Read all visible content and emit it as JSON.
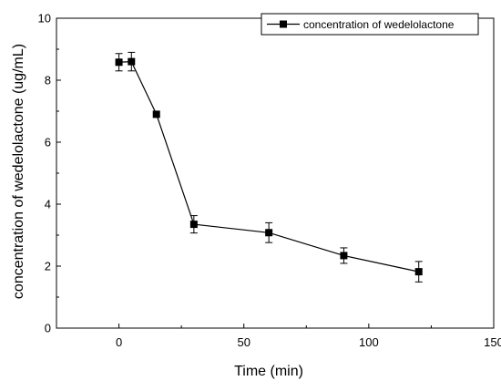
{
  "chart_data": {
    "type": "line",
    "title": "",
    "xlabel": "Time (min)",
    "ylabel": "concentration of wedelolactone (ug/mL)",
    "xlim": [
      -25,
      150
    ],
    "ylim": [
      0,
      10
    ],
    "xticks": [
      0,
      50,
      100,
      150
    ],
    "yticks": [
      0,
      2,
      4,
      6,
      8,
      10
    ],
    "grid": false,
    "legend_position": "top-right",
    "series": [
      {
        "name": "concentration of wedelolactone",
        "marker": "square",
        "color": "#000000",
        "points": [
          {
            "x": 0,
            "y": 8.58,
            "err": 0.28
          },
          {
            "x": 5,
            "y": 8.6,
            "err": 0.3
          },
          {
            "x": 15,
            "y": 6.9,
            "err": 0
          },
          {
            "x": 30,
            "y": 3.35,
            "err": 0.28
          },
          {
            "x": 60,
            "y": 3.08,
            "err": 0.32
          },
          {
            "x": 90,
            "y": 2.34,
            "err": 0.25
          },
          {
            "x": 120,
            "y": 1.82,
            "err": 0.33
          }
        ]
      }
    ]
  }
}
